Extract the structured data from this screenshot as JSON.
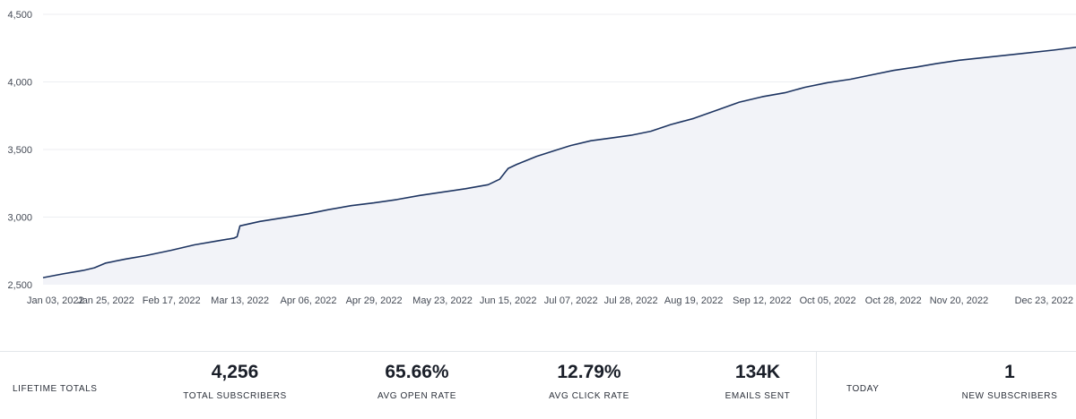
{
  "chart_data": {
    "type": "area",
    "title": "",
    "xlabel": "",
    "ylabel": "",
    "ylim": [
      2500,
      4500
    ],
    "yticks": [
      2500,
      3000,
      3500,
      4000,
      4500
    ],
    "ytick_labels": [
      "2,500",
      "3,000",
      "3,500",
      "4,000",
      "4,500"
    ],
    "xtick_labels": [
      "Jan 03, 2022",
      "Jan 25, 2022",
      "Feb 17, 2022",
      "Mar 13, 2022",
      "Apr 06, 2022",
      "Apr 29, 2022",
      "May 23, 2022",
      "Jun 15, 2022",
      "Jul 07, 2022",
      "Jul 28, 2022",
      "Aug 19, 2022",
      "Sep 12, 2022",
      "Oct 05, 2022",
      "Oct 28, 2022",
      "Nov 20, 2022",
      "Dec 23, 2022"
    ],
    "grid": true,
    "colors": {
      "line": "#1d3461",
      "fill": "#f2f3f8",
      "grid": "#eceef2"
    },
    "series": [
      {
        "x": [
          "Jan 03, 2022",
          "Jan 10, 2022",
          "Jan 17, 2022",
          "Jan 21, 2022",
          "Jan 25, 2022",
          "Feb 01, 2022",
          "Feb 08, 2022",
          "Feb 17, 2022",
          "Feb 25, 2022",
          "Mar 04, 2022",
          "Mar 11, 2022",
          "Mar 12, 2022",
          "Mar 13, 2022",
          "Mar 20, 2022",
          "Mar 28, 2022",
          "Apr 06, 2022",
          "Apr 13, 2022",
          "Apr 21, 2022",
          "Apr 29, 2022",
          "May 07, 2022",
          "May 15, 2022",
          "May 23, 2022",
          "May 31, 2022",
          "Jun 08, 2022",
          "Jun 12, 2022",
          "Jun 15, 2022",
          "Jun 18, 2022",
          "Jun 25, 2022",
          "Jul 01, 2022",
          "Jul 07, 2022",
          "Jul 14, 2022",
          "Jul 21, 2022",
          "Jul 28, 2022",
          "Aug 04, 2022",
          "Aug 11, 2022",
          "Aug 19, 2022",
          "Aug 27, 2022",
          "Sep 04, 2022",
          "Sep 12, 2022",
          "Sep 20, 2022",
          "Sep 27, 2022",
          "Oct 05, 2022",
          "Oct 13, 2022",
          "Oct 20, 2022",
          "Oct 28, 2022",
          "Nov 05, 2022",
          "Nov 12, 2022",
          "Nov 20, 2022",
          "Dec 01, 2022",
          "Dec 12, 2022",
          "Dec 23, 2022",
          "Dec 31, 2022"
        ],
        "values": [
          2552,
          2580,
          2605,
          2625,
          2660,
          2690,
          2715,
          2755,
          2795,
          2820,
          2845,
          2855,
          2935,
          2968,
          2995,
          3025,
          3055,
          3085,
          3105,
          3130,
          3160,
          3185,
          3210,
          3240,
          3280,
          3360,
          3390,
          3450,
          3490,
          3530,
          3565,
          3585,
          3605,
          3635,
          3685,
          3730,
          3790,
          3850,
          3890,
          3920,
          3960,
          3995,
          4020,
          4050,
          4085,
          4110,
          4135,
          4160,
          4185,
          4210,
          4235,
          4256
        ]
      }
    ]
  },
  "stats": {
    "lifetime_label": "LIFETIME TOTALS",
    "total_subscribers": {
      "value": "4,256",
      "label": "TOTAL SUBSCRIBERS"
    },
    "avg_open_rate": {
      "value": "65.66%",
      "label": "AVG OPEN RATE"
    },
    "avg_click_rate": {
      "value": "12.79%",
      "label": "AVG CLICK RATE"
    },
    "emails_sent": {
      "value": "134K",
      "label": "EMAILS SENT"
    },
    "today_label": "TODAY",
    "new_subscribers": {
      "value": "1",
      "label": "NEW SUBSCRIBERS"
    }
  }
}
